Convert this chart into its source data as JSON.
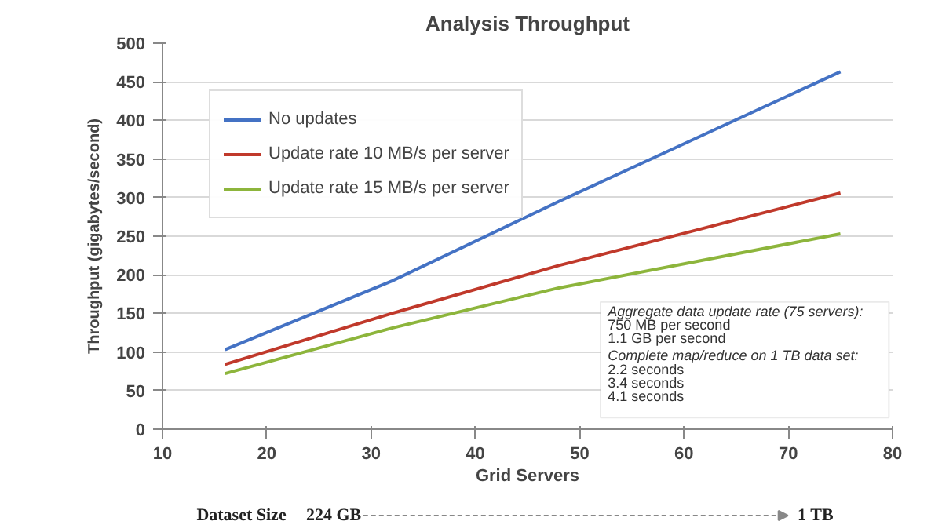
{
  "chart_data": {
    "type": "line",
    "title": "Analysis Throughput",
    "xlabel": "Grid Servers",
    "ylabel": "Throughput (gigabytes/second)",
    "x": [
      16,
      32,
      48,
      75
    ],
    "series": [
      {
        "name": "No updates",
        "color": "#4472c4",
        "values": [
          103,
          192,
          295,
          463
        ]
      },
      {
        "name": "Update rate 10 MB/s per server",
        "color": "#c0392b",
        "values": [
          84,
          150,
          212,
          306
        ]
      },
      {
        "name": "Update rate 15 MB/s per server",
        "color": "#8db53c",
        "values": [
          72,
          131,
          183,
          253
        ]
      }
    ],
    "xlim": [
      10,
      80
    ],
    "xticks": [
      10,
      20,
      30,
      40,
      50,
      60,
      70,
      80
    ],
    "ylim": [
      0,
      500
    ],
    "yticks": [
      0,
      50,
      100,
      150,
      200,
      250,
      300,
      350,
      400,
      450,
      500
    ],
    "grid": "y",
    "legend": "top left",
    "annotations": [
      "Aggregate data update rate (75 servers):",
      "750 MB per second",
      "1.1 GB per second",
      "Complete map/reduce on 1 TB data set:",
      "2.2 seconds",
      "3.4 seconds",
      "4.1 seconds",
      "Dataset Size",
      "224 GB",
      "1 TB"
    ]
  }
}
